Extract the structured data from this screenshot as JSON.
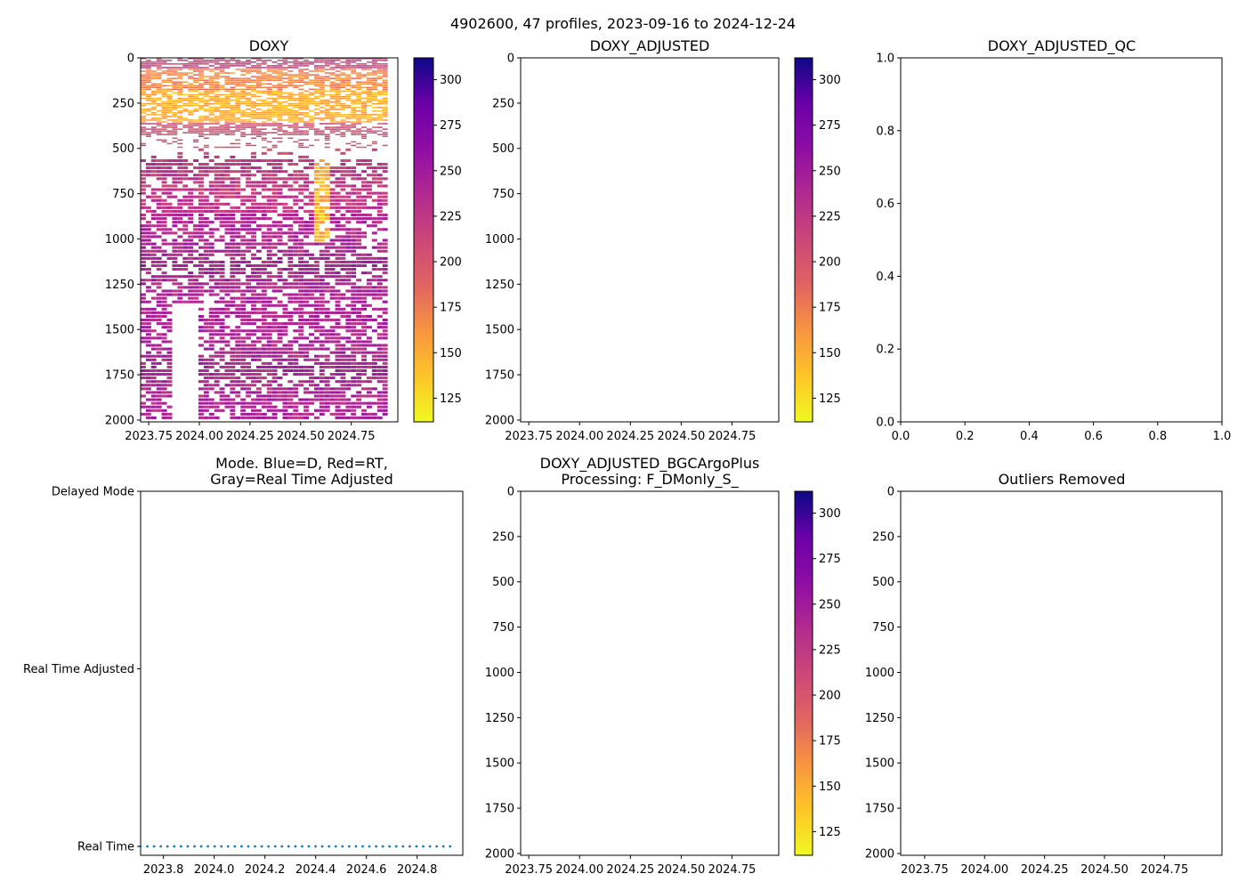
{
  "figure": {
    "suptitle": "4902600, 47 profiles, 2023-09-16 to 2024-12-24"
  },
  "chart_data": [
    {
      "id": "doxy",
      "type": "heatmap",
      "title": "DOXY",
      "x_ticks": [
        "2023.75",
        "2024.00",
        "2024.25",
        "2024.50",
        "2024.75"
      ],
      "x_tick_values": [
        2023.75,
        2024.0,
        2024.25,
        2024.5,
        2024.75
      ],
      "xlim": [
        2023.71,
        2024.98
      ],
      "y_ticks": [
        "0",
        "250",
        "500",
        "750",
        "1000",
        "1250",
        "1500",
        "1750",
        "2000"
      ],
      "y_tick_values": [
        0,
        250,
        500,
        750,
        1000,
        1250,
        1500,
        1750,
        2000
      ],
      "ylim": [
        2010,
        0
      ],
      "profiles": 47,
      "colormap": "plasma_r",
      "colorbar": {
        "ticks": [
          "125",
          "150",
          "175",
          "200",
          "225",
          "250",
          "275",
          "300"
        ],
        "tick_values": [
          125,
          150,
          175,
          200,
          225,
          250,
          275,
          300
        ],
        "range": [
          112,
          312
        ]
      },
      "depth_bands": [
        {
          "from": 0,
          "to": 60,
          "value": 215
        },
        {
          "from": 60,
          "to": 180,
          "value": 170
        },
        {
          "from": 180,
          "to": 360,
          "value": 150
        },
        {
          "from": 360,
          "to": 540,
          "value": 205
        },
        {
          "from": 540,
          "to": 860,
          "value": 225
        },
        {
          "from": 860,
          "to": 1000,
          "value": 238
        },
        {
          "from": 1000,
          "to": 2000,
          "value": 240
        }
      ],
      "anomaly": {
        "x_from": 2024.55,
        "x_to": 2024.63,
        "depth_from": 530,
        "depth_to": 1000,
        "value": 128
      }
    },
    {
      "id": "doxy_adjusted",
      "type": "heatmap",
      "title": "DOXY_ADJUSTED",
      "x_ticks": [
        "2023.75",
        "2024.00",
        "2024.25",
        "2024.50",
        "2024.75"
      ],
      "x_tick_values": [
        2023.75,
        2024.0,
        2024.25,
        2024.5,
        2024.75
      ],
      "xlim": [
        2023.71,
        2024.98
      ],
      "y_ticks": [
        "0",
        "250",
        "500",
        "750",
        "1000",
        "1250",
        "1500",
        "1750",
        "2000"
      ],
      "y_tick_values": [
        0,
        250,
        500,
        750,
        1000,
        1250,
        1500,
        1750,
        2000
      ],
      "ylim": [
        2010,
        0
      ],
      "colormap": "plasma_r",
      "colorbar": {
        "ticks": [
          "125",
          "150",
          "175",
          "200",
          "225",
          "250",
          "275",
          "300"
        ],
        "tick_values": [
          125,
          150,
          175,
          200,
          225,
          250,
          275,
          300
        ],
        "range": [
          112,
          312
        ]
      },
      "values": []
    },
    {
      "id": "doxy_adjusted_qc",
      "type": "scatter",
      "title": "DOXY_ADJUSTED_QC",
      "x_ticks": [
        "0.0",
        "0.2",
        "0.4",
        "0.6",
        "0.8",
        "1.0"
      ],
      "x_tick_values": [
        0,
        0.2,
        0.4,
        0.6,
        0.8,
        1.0
      ],
      "xlim": [
        0,
        1
      ],
      "y_ticks": [
        "0.0",
        "0.2",
        "0.4",
        "0.6",
        "0.8",
        "1.0"
      ],
      "y_tick_values": [
        0,
        0.2,
        0.4,
        0.6,
        0.8,
        1.0
      ],
      "ylim": [
        0,
        1
      ],
      "values": []
    },
    {
      "id": "mode",
      "type": "scatter",
      "title_line1": "Mode. Blue=D, Red=RT,",
      "title_line2": "Gray=Real Time Adjusted",
      "x_ticks": [
        "2023.8",
        "2024.0",
        "2024.2",
        "2024.4",
        "2024.6",
        "2024.8"
      ],
      "x_tick_values": [
        2023.8,
        2024.0,
        2024.2,
        2024.4,
        2024.6,
        2024.8
      ],
      "xlim": [
        2023.71,
        2024.98
      ],
      "y_ticks": [
        "Delayed Mode",
        "Real Time Adjusted",
        "Real Time"
      ],
      "y_tick_values": [
        2,
        1,
        0
      ],
      "ylim": [
        -0.05,
        2
      ],
      "series": [
        {
          "name": "Real Time",
          "color": "#1f77b4",
          "y": 0,
          "x_start": 2023.71,
          "x_end": 2024.93,
          "count": 47
        }
      ]
    },
    {
      "id": "bgcargoplus",
      "type": "heatmap",
      "title_line1": "DOXY_ADJUSTED_BGCArgoPlus",
      "title_line2": "Processing: F_DMonly_S_",
      "x_ticks": [
        "2023.75",
        "2024.00",
        "2024.25",
        "2024.50",
        "2024.75"
      ],
      "x_tick_values": [
        2023.75,
        2024.0,
        2024.25,
        2024.5,
        2024.75
      ],
      "xlim": [
        2023.71,
        2024.98
      ],
      "y_ticks": [
        "0",
        "250",
        "500",
        "750",
        "1000",
        "1250",
        "1500",
        "1750",
        "2000"
      ],
      "y_tick_values": [
        0,
        250,
        500,
        750,
        1000,
        1250,
        1500,
        1750,
        2000
      ],
      "ylim": [
        2010,
        0
      ],
      "colormap": "plasma_r",
      "colorbar": {
        "ticks": [
          "125",
          "150",
          "175",
          "200",
          "225",
          "250",
          "275",
          "300"
        ],
        "tick_values": [
          125,
          150,
          175,
          200,
          225,
          250,
          275,
          300
        ],
        "range": [
          112,
          312
        ]
      },
      "values": []
    },
    {
      "id": "outliers",
      "type": "scatter",
      "title": "Outliers Removed",
      "x_ticks": [
        "2023.75",
        "2024.00",
        "2024.25",
        "2024.50",
        "2024.75"
      ],
      "x_tick_values": [
        2023.75,
        2024.0,
        2024.25,
        2024.5,
        2024.75
      ],
      "xlim": [
        2023.65,
        2024.99
      ],
      "y_ticks": [
        "0",
        "250",
        "500",
        "750",
        "1000",
        "1250",
        "1500",
        "1750",
        "2000"
      ],
      "y_tick_values": [
        0,
        250,
        500,
        750,
        1000,
        1250,
        1500,
        1750,
        2000
      ],
      "ylim": [
        2010,
        0
      ],
      "values": []
    }
  ]
}
